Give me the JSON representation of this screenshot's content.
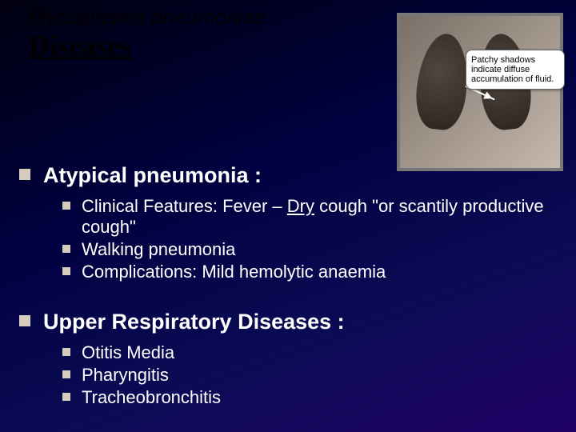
{
  "header": {
    "subject": "Mycoplasma pneumoniae",
    "title": "Diseases"
  },
  "figure": {
    "callout": "Patchy shadows indicate diffuse accumulation of fluid."
  },
  "bullets": {
    "section1": {
      "heading": "Atypical pneumonia :",
      "items": [
        {
          "pre": "Clinical Features: Fever – ",
          "underline": "Dry",
          "post": " cough \"or scantily productive cough\""
        },
        {
          "text": "Walking pneumonia"
        },
        {
          "text": "Complications: Mild hemolytic anaemia"
        }
      ]
    },
    "section2": {
      "heading": "Upper Respiratory Diseases :",
      "items": [
        {
          "text": "Otitis Media"
        },
        {
          "text": "Pharyngitis"
        },
        {
          "text": "Tracheobronchitis"
        }
      ]
    }
  },
  "style": {
    "heading_fontsize": 27,
    "body_fontsize": 22,
    "bullet_color": "#d6ccbe",
    "bg_gradient_stops": [
      "#000010",
      "#000040",
      "#0b0b55",
      "#200065"
    ],
    "title_color": "#000000",
    "text_color": "#ffffff"
  }
}
